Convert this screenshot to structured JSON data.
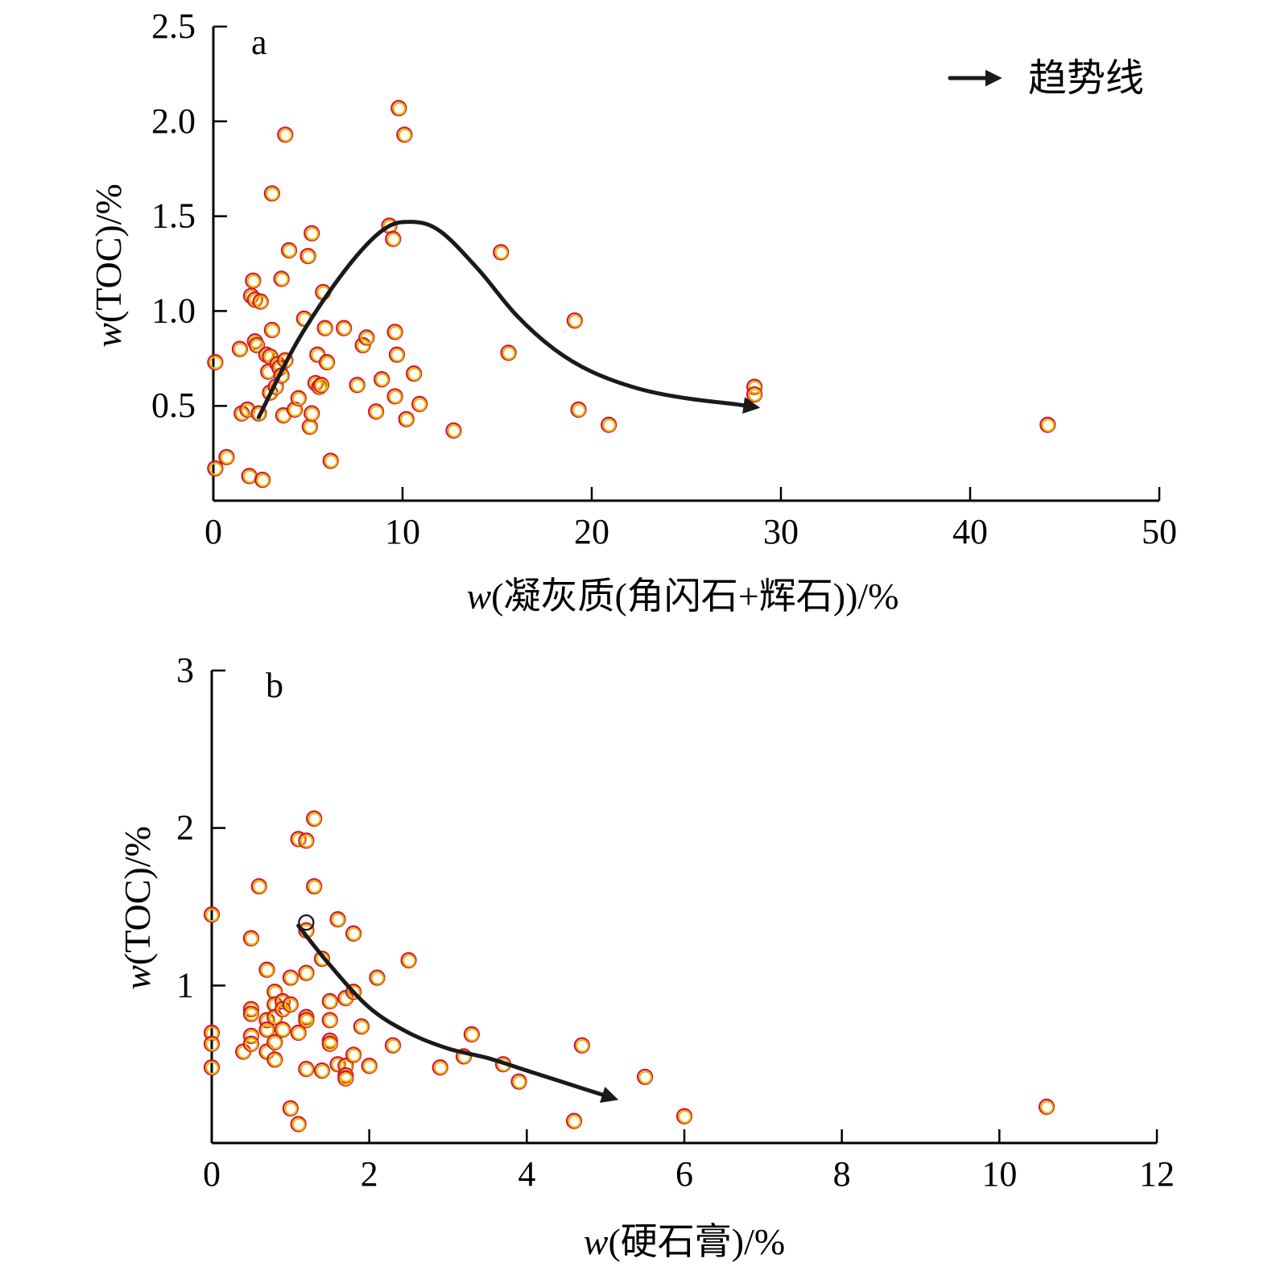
{
  "legend": {
    "label": "趋势线"
  },
  "colors": {
    "point_outer": "#d4143a",
    "point_inner": "#e6b800",
    "trend": "#1a1a1a",
    "axis": "#000000"
  },
  "chart_data": [
    {
      "type": "scatter",
      "panel": "a",
      "xlabel_prefix": "w",
      "xlabel_rest": "(凝灰质(角闪石+辉石))/%",
      "ylabel_prefix": "w",
      "ylabel_rest": "(TOC)/%",
      "xlim": [
        0,
        50
      ],
      "ylim": [
        0,
        2.5
      ],
      "xticks": [
        0,
        10,
        20,
        30,
        40,
        50
      ],
      "xtick_labels": [
        "0",
        "10",
        "20",
        "30",
        "40",
        "50"
      ],
      "yticks": [
        0.5,
        1.0,
        1.5,
        2.0,
        2.5
      ],
      "ytick_labels": [
        "0.5",
        "1.0",
        "1.5",
        "2.0",
        "2.5"
      ],
      "grid": false,
      "legend_position": "top-right",
      "points": [
        [
          0.1,
          0.73
        ],
        [
          0.1,
          0.17
        ],
        [
          0.7,
          0.23
        ],
        [
          1.4,
          0.8
        ],
        [
          1.5,
          0.46
        ],
        [
          1.8,
          0.48
        ],
        [
          1.9,
          0.13
        ],
        [
          2.0,
          1.08
        ],
        [
          2.1,
          1.16
        ],
        [
          2.2,
          1.06
        ],
        [
          2.2,
          0.84
        ],
        [
          2.3,
          0.82
        ],
        [
          2.4,
          0.46
        ],
        [
          2.5,
          1.05
        ],
        [
          2.6,
          0.11
        ],
        [
          2.8,
          0.77
        ],
        [
          2.9,
          0.68
        ],
        [
          3.0,
          0.57
        ],
        [
          3.0,
          0.76
        ],
        [
          3.1,
          0.9
        ],
        [
          3.1,
          1.62
        ],
        [
          3.3,
          0.6
        ],
        [
          3.4,
          0.72
        ],
        [
          3.5,
          0.7
        ],
        [
          3.6,
          0.66
        ],
        [
          3.6,
          1.17
        ],
        [
          3.7,
          0.45
        ],
        [
          3.8,
          0.74
        ],
        [
          3.8,
          1.93
        ],
        [
          4.0,
          1.32
        ],
        [
          4.3,
          0.48
        ],
        [
          4.5,
          0.54
        ],
        [
          4.8,
          0.96
        ],
        [
          5.0,
          1.29
        ],
        [
          5.1,
          0.39
        ],
        [
          5.2,
          1.41
        ],
        [
          5.2,
          0.46
        ],
        [
          5.4,
          0.62
        ],
        [
          5.5,
          0.77
        ],
        [
          5.6,
          0.6
        ],
        [
          5.7,
          0.61
        ],
        [
          5.8,
          1.1
        ],
        [
          5.9,
          0.91
        ],
        [
          6.0,
          0.73
        ],
        [
          6.2,
          0.21
        ],
        [
          6.9,
          0.91
        ],
        [
          7.6,
          0.61
        ],
        [
          7.9,
          0.82
        ],
        [
          8.1,
          0.86
        ],
        [
          8.6,
          0.47
        ],
        [
          8.9,
          0.64
        ],
        [
          9.3,
          1.45
        ],
        [
          9.5,
          1.38
        ],
        [
          9.6,
          0.89
        ],
        [
          9.6,
          0.55
        ],
        [
          9.7,
          0.77
        ],
        [
          9.8,
          2.07
        ],
        [
          10.1,
          1.93
        ],
        [
          10.2,
          0.43
        ],
        [
          10.6,
          0.67
        ],
        [
          10.9,
          0.51
        ],
        [
          12.7,
          0.37
        ],
        [
          15.2,
          1.31
        ],
        [
          15.6,
          0.78
        ],
        [
          19.1,
          0.95
        ],
        [
          19.3,
          0.48
        ],
        [
          20.9,
          0.4
        ],
        [
          28.6,
          0.6
        ],
        [
          28.6,
          0.56
        ],
        [
          44.1,
          0.4
        ]
      ],
      "trend_line": [
        [
          2.4,
          0.44
        ],
        [
          4.5,
          0.85
        ],
        [
          7.0,
          1.22
        ],
        [
          9.0,
          1.43
        ],
        [
          10.5,
          1.47
        ],
        [
          12.0,
          1.42
        ],
        [
          14.0,
          1.22
        ],
        [
          16.0,
          0.98
        ],
        [
          18.0,
          0.8
        ],
        [
          20.0,
          0.68
        ],
        [
          22.5,
          0.59
        ],
        [
          25.0,
          0.54
        ],
        [
          27.5,
          0.51
        ],
        [
          28.2,
          0.5
        ]
      ]
    },
    {
      "type": "scatter",
      "panel": "b",
      "xlabel_prefix": "w",
      "xlabel_rest": "(硬石膏)/%",
      "ylabel_prefix": "w",
      "ylabel_rest": "(TOC)/%",
      "xlim": [
        0,
        12
      ],
      "ylim": [
        0,
        3
      ],
      "xticks": [
        0,
        2,
        4,
        6,
        8,
        10,
        12
      ],
      "xtick_labels": [
        "0",
        "2",
        "4",
        "6",
        "8",
        "10",
        "12"
      ],
      "yticks": [
        1,
        2,
        3
      ],
      "ytick_labels": [
        "1",
        "2",
        "3"
      ],
      "grid": false,
      "points": [
        [
          0.0,
          1.45
        ],
        [
          0.0,
          0.7
        ],
        [
          0.0,
          0.63
        ],
        [
          0.0,
          0.48
        ],
        [
          0.4,
          0.58
        ],
        [
          0.5,
          1.3
        ],
        [
          0.5,
          0.85
        ],
        [
          0.5,
          0.82
        ],
        [
          0.5,
          0.68
        ],
        [
          0.5,
          0.63
        ],
        [
          0.6,
          1.63
        ],
        [
          0.7,
          1.1
        ],
        [
          0.7,
          0.78
        ],
        [
          0.7,
          0.72
        ],
        [
          0.7,
          0.58
        ],
        [
          0.8,
          0.96
        ],
        [
          0.8,
          0.88
        ],
        [
          0.8,
          0.8
        ],
        [
          0.8,
          0.64
        ],
        [
          0.8,
          0.53
        ],
        [
          0.9,
          0.9
        ],
        [
          0.9,
          0.85
        ],
        [
          0.9,
          0.72
        ],
        [
          1.0,
          1.05
        ],
        [
          1.0,
          0.88
        ],
        [
          1.0,
          0.22
        ],
        [
          1.1,
          1.93
        ],
        [
          1.1,
          0.7
        ],
        [
          1.1,
          0.12
        ],
        [
          1.2,
          1.92
        ],
        [
          1.2,
          1.35
        ],
        [
          1.2,
          1.08
        ],
        [
          1.2,
          0.8
        ],
        [
          1.2,
          0.78
        ],
        [
          1.2,
          0.47
        ],
        [
          1.3,
          2.06
        ],
        [
          1.3,
          1.63
        ],
        [
          1.4,
          1.17
        ],
        [
          1.4,
          0.46
        ],
        [
          1.5,
          0.9
        ],
        [
          1.5,
          0.78
        ],
        [
          1.5,
          0.65
        ],
        [
          1.5,
          0.63
        ],
        [
          1.6,
          1.42
        ],
        [
          1.6,
          0.5
        ],
        [
          1.7,
          0.92
        ],
        [
          1.7,
          0.49
        ],
        [
          1.7,
          0.43
        ],
        [
          1.7,
          0.41
        ],
        [
          1.8,
          1.33
        ],
        [
          1.8,
          0.96
        ],
        [
          1.8,
          0.56
        ],
        [
          1.9,
          0.74
        ],
        [
          2.0,
          0.49
        ],
        [
          2.1,
          1.05
        ],
        [
          2.3,
          0.62
        ],
        [
          2.5,
          1.16
        ],
        [
          2.9,
          0.48
        ],
        [
          3.2,
          0.55
        ],
        [
          3.3,
          0.69
        ],
        [
          3.7,
          0.5
        ],
        [
          3.9,
          0.39
        ],
        [
          4.6,
          0.14
        ],
        [
          4.7,
          0.62
        ],
        [
          5.5,
          0.42
        ],
        [
          6.0,
          0.17
        ],
        [
          10.6,
          0.23
        ]
      ],
      "highlight_points": [
        [
          1.2,
          1.4
        ]
      ],
      "trend_line": [
        [
          1.1,
          1.38
        ],
        [
          1.5,
          1.13
        ],
        [
          2.0,
          0.86
        ],
        [
          2.5,
          0.7
        ],
        [
          3.0,
          0.6
        ],
        [
          3.5,
          0.54
        ],
        [
          4.0,
          0.46
        ],
        [
          4.5,
          0.38
        ],
        [
          5.0,
          0.3
        ]
      ]
    }
  ]
}
